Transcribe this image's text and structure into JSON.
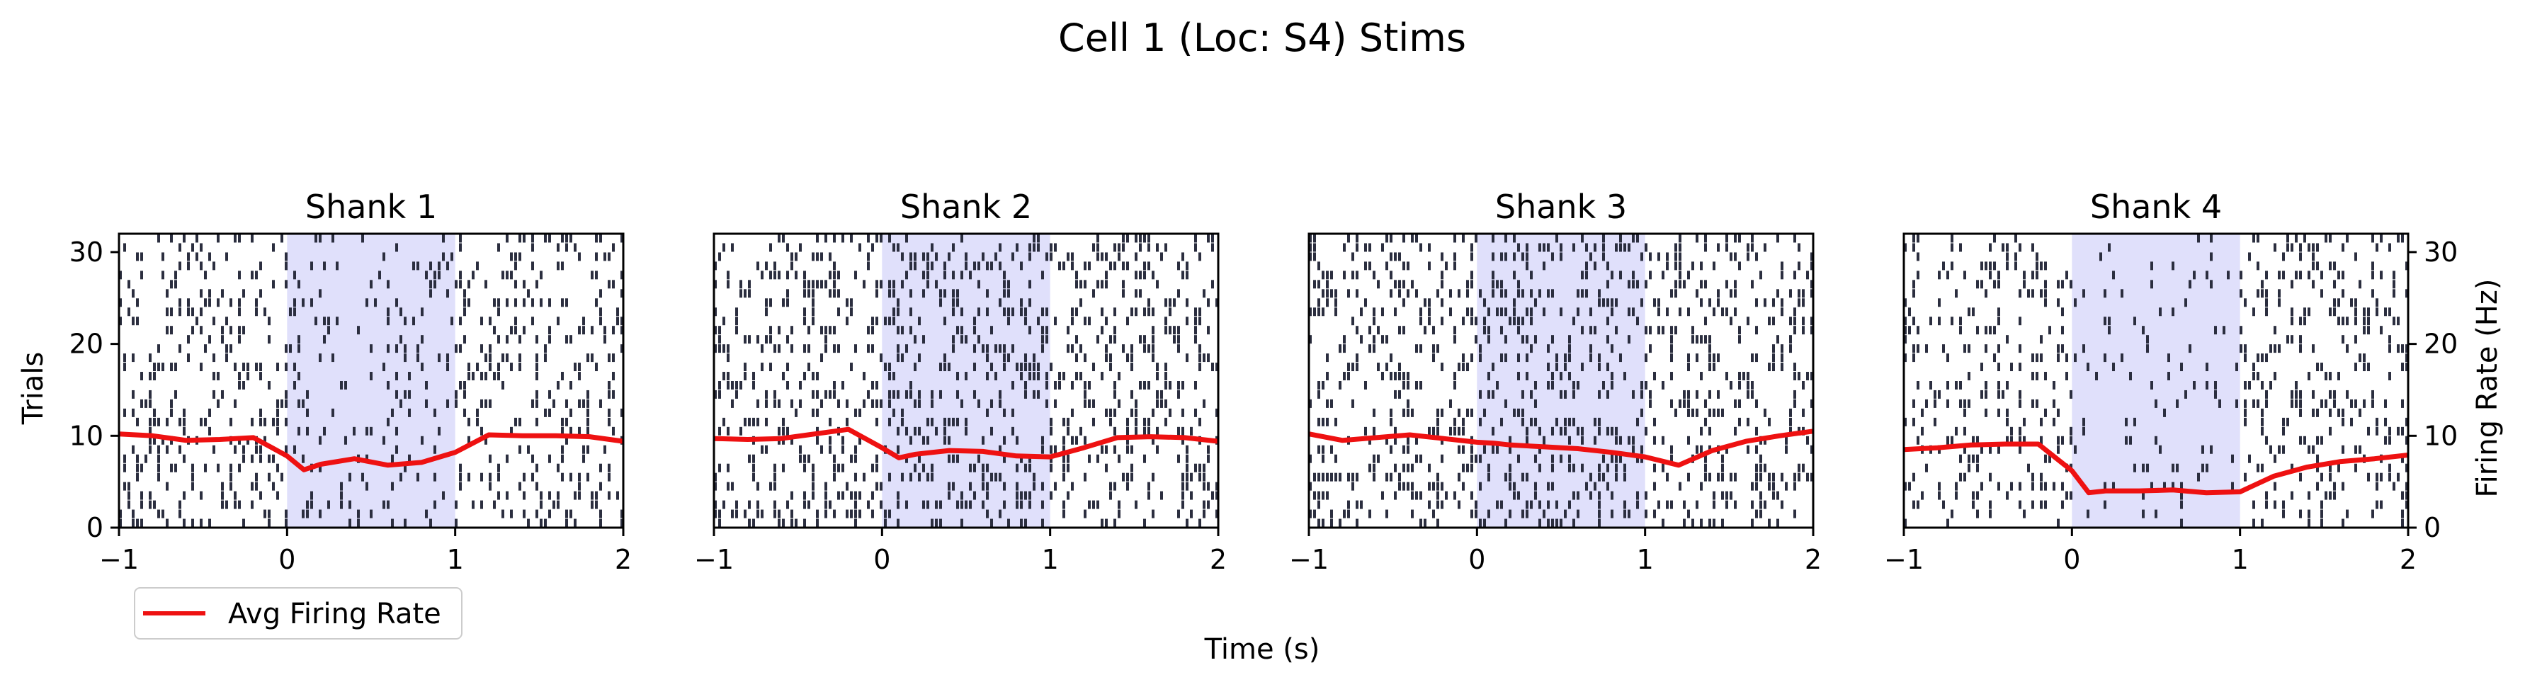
{
  "chart_data": {
    "type": "raster",
    "title": "Cell 1 (Loc: S4) Stims",
    "xlabel": "Time (s)",
    "ylabel_left": "Trials",
    "ylabel_right": "Firing Rate (Hz)",
    "xlim": [
      -1,
      2
    ],
    "ylim": [
      0,
      32
    ],
    "xticks": [
      "−1",
      "0",
      "1",
      "2"
    ],
    "yticks": [
      "0",
      "10",
      "20",
      "30"
    ],
    "stim_window": [
      0,
      1
    ],
    "n_trials": 32,
    "legend": {
      "label": "Avg Firing Rate",
      "position": "lower-left"
    },
    "colors": {
      "spike": "#2b2e3f",
      "rate": "#ee1111",
      "stim": "#e0e0fb"
    },
    "rate_times": [
      -1.0,
      -0.8,
      -0.6,
      -0.4,
      -0.2,
      0.0,
      0.1,
      0.2,
      0.4,
      0.6,
      0.8,
      1.0,
      1.2,
      1.4,
      1.6,
      1.8,
      2.0
    ],
    "panels": [
      {
        "title": "Shank 1",
        "spike_density": [
          0.22,
          0.13,
          0.21
        ],
        "rate": [
          10.2,
          10.0,
          9.5,
          9.6,
          9.8,
          7.8,
          6.3,
          6.9,
          7.5,
          6.8,
          7.1,
          8.2,
          10.1,
          10.0,
          10.0,
          9.9,
          9.4
        ]
      },
      {
        "title": "Shank 2",
        "spike_density": [
          0.24,
          0.23,
          0.25
        ],
        "rate": [
          9.7,
          9.6,
          9.7,
          10.2,
          10.7,
          8.7,
          7.6,
          8.0,
          8.4,
          8.3,
          7.8,
          7.7,
          8.7,
          9.8,
          9.9,
          9.8,
          9.4
        ]
      },
      {
        "title": "Shank 3",
        "spike_density": [
          0.25,
          0.24,
          0.24
        ],
        "rate": [
          10.2,
          9.5,
          9.8,
          10.1,
          9.7,
          9.3,
          9.2,
          9.0,
          8.8,
          8.6,
          8.2,
          7.7,
          6.8,
          8.4,
          9.4,
          10.0,
          10.5
        ]
      },
      {
        "title": "Shank 4",
        "spike_density": [
          0.2,
          0.07,
          0.2
        ],
        "rate": [
          8.5,
          8.7,
          9.0,
          9.1,
          9.1,
          6.2,
          3.8,
          4.0,
          4.0,
          4.1,
          3.8,
          3.9,
          5.6,
          6.6,
          7.2,
          7.5,
          7.9
        ]
      }
    ]
  }
}
